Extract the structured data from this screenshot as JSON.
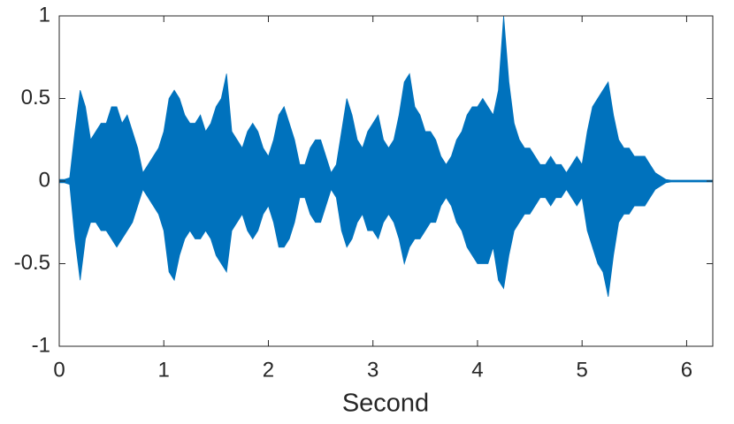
{
  "chart_data": {
    "type": "area",
    "xlabel": "Second",
    "x": [
      0,
      0.05,
      0.1,
      0.15,
      0.2,
      0.25,
      0.3,
      0.35,
      0.4,
      0.45,
      0.5,
      0.55,
      0.6,
      0.65,
      0.7,
      0.75,
      0.8,
      0.85,
      0.9,
      0.95,
      1,
      1.05,
      1.1,
      1.15,
      1.2,
      1.25,
      1.3,
      1.35,
      1.4,
      1.45,
      1.5,
      1.55,
      1.6,
      1.65,
      1.7,
      1.75,
      1.8,
      1.85,
      1.9,
      1.95,
      2,
      2.05,
      2.1,
      2.15,
      2.2,
      2.25,
      2.3,
      2.35,
      2.4,
      2.45,
      2.5,
      2.55,
      2.6,
      2.65,
      2.7,
      2.75,
      2.8,
      2.85,
      2.9,
      2.95,
      3,
      3.05,
      3.1,
      3.15,
      3.2,
      3.25,
      3.3,
      3.35,
      3.4,
      3.45,
      3.5,
      3.55,
      3.6,
      3.65,
      3.7,
      3.75,
      3.8,
      3.85,
      3.9,
      3.95,
      4,
      4.05,
      4.1,
      4.15,
      4.2,
      4.25,
      4.3,
      4.35,
      4.4,
      4.45,
      4.5,
      4.55,
      4.6,
      4.65,
      4.7,
      4.75,
      4.8,
      4.85,
      4.9,
      4.95,
      5,
      5.05,
      5.1,
      5.15,
      5.2,
      5.25,
      5.3,
      5.35,
      5.4,
      5.45,
      5.5,
      5.55,
      5.6,
      5.65,
      5.7,
      5.75,
      5.8,
      5.85,
      5.9,
      5.95,
      6,
      6.05,
      6.1,
      6.15,
      6.2,
      6.25
    ],
    "series": [
      {
        "color": "#0072bd",
        "values": [
          0.01,
          0.01,
          0.02,
          0.3,
          0.55,
          0.45,
          0.25,
          0.3,
          0.35,
          0.35,
          0.45,
          0.45,
          0.35,
          0.4,
          0.3,
          0.2,
          0.05,
          0.1,
          0.15,
          0.2,
          0.3,
          0.5,
          0.55,
          0.5,
          0.4,
          0.35,
          0.35,
          0.4,
          0.3,
          0.35,
          0.45,
          0.5,
          0.65,
          0.3,
          0.25,
          0.2,
          0.3,
          0.35,
          0.3,
          0.2,
          0.15,
          0.25,
          0.4,
          0.45,
          0.35,
          0.25,
          0.1,
          0.1,
          0.2,
          0.25,
          0.25,
          0.15,
          0.05,
          0.1,
          0.3,
          0.5,
          0.4,
          0.25,
          0.2,
          0.3,
          0.35,
          0.4,
          0.25,
          0.2,
          0.25,
          0.4,
          0.6,
          0.65,
          0.45,
          0.4,
          0.3,
          0.3,
          0.25,
          0.15,
          0.1,
          0.15,
          0.25,
          0.3,
          0.4,
          0.45,
          0.45,
          0.5,
          0.45,
          0.4,
          0.55,
          1.0,
          0.6,
          0.35,
          0.25,
          0.2,
          0.2,
          0.15,
          0.1,
          0.1,
          0.15,
          0.1,
          0.1,
          0.05,
          0.1,
          0.15,
          0.1,
          0.3,
          0.45,
          0.5,
          0.55,
          0.6,
          0.4,
          0.25,
          0.2,
          0.2,
          0.15,
          0.15,
          0.15,
          0.1,
          0.05,
          0.03,
          0.01,
          0.005,
          0.005,
          0.005,
          0.005,
          0.005,
          0.005,
          0.005,
          0.005,
          0.005
        ]
      },
      {
        "color": "#0072bd",
        "values": [
          -0.01,
          -0.01,
          -0.02,
          -0.35,
          -0.6,
          -0.35,
          -0.25,
          -0.25,
          -0.3,
          -0.3,
          -0.35,
          -0.4,
          -0.35,
          -0.3,
          -0.25,
          -0.15,
          -0.05,
          -0.1,
          -0.15,
          -0.2,
          -0.3,
          -0.55,
          -0.6,
          -0.45,
          -0.35,
          -0.3,
          -0.35,
          -0.35,
          -0.3,
          -0.35,
          -0.45,
          -0.5,
          -0.55,
          -0.3,
          -0.25,
          -0.2,
          -0.3,
          -0.35,
          -0.3,
          -0.2,
          -0.15,
          -0.25,
          -0.4,
          -0.4,
          -0.35,
          -0.25,
          -0.1,
          -0.1,
          -0.2,
          -0.25,
          -0.25,
          -0.15,
          -0.05,
          -0.1,
          -0.3,
          -0.4,
          -0.35,
          -0.25,
          -0.2,
          -0.3,
          -0.3,
          -0.35,
          -0.25,
          -0.2,
          -0.25,
          -0.35,
          -0.5,
          -0.4,
          -0.35,
          -0.35,
          -0.3,
          -0.25,
          -0.25,
          -0.15,
          -0.1,
          -0.15,
          -0.25,
          -0.3,
          -0.4,
          -0.45,
          -0.5,
          -0.5,
          -0.5,
          -0.4,
          -0.6,
          -0.65,
          -0.45,
          -0.3,
          -0.25,
          -0.2,
          -0.2,
          -0.15,
          -0.1,
          -0.1,
          -0.15,
          -0.1,
          -0.1,
          -0.05,
          -0.1,
          -0.15,
          -0.1,
          -0.3,
          -0.4,
          -0.5,
          -0.55,
          -0.7,
          -0.45,
          -0.25,
          -0.2,
          -0.2,
          -0.15,
          -0.15,
          -0.15,
          -0.1,
          -0.05,
          -0.03,
          -0.01,
          -0.005,
          -0.005,
          -0.005,
          -0.005,
          -0.005,
          -0.005,
          -0.005,
          -0.005,
          -0.005
        ]
      }
    ],
    "xlim": [
      0,
      6.25
    ],
    "xticks": [
      0,
      1,
      2,
      3,
      4,
      5,
      6
    ],
    "ylim": [
      -1,
      1
    ],
    "yticks": [
      -1,
      -0.5,
      0,
      0.5,
      1
    ]
  }
}
